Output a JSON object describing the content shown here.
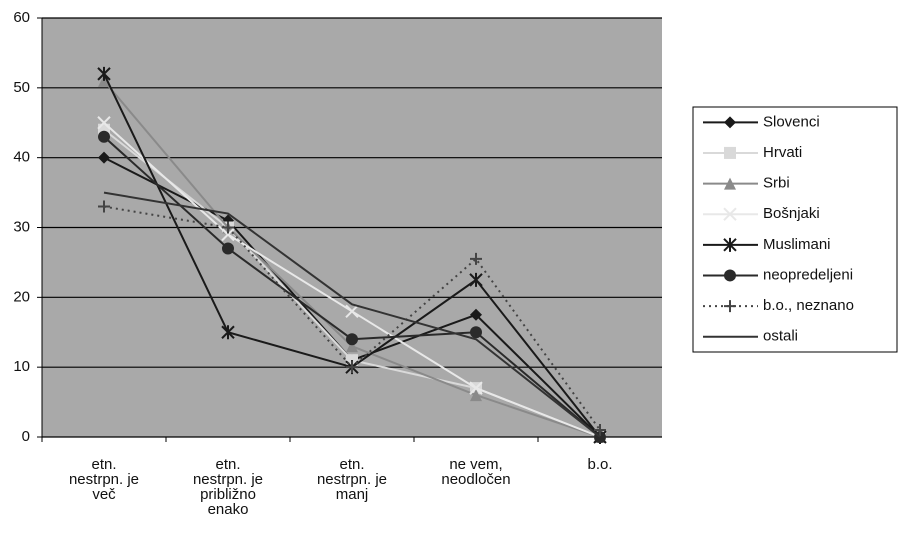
{
  "chart_data": {
    "type": "line",
    "categories": [
      [
        "etn.",
        "nestrpn. je",
        "več"
      ],
      [
        "etn.",
        "nestrpn. je",
        "približno",
        "enako"
      ],
      [
        "etn.",
        "nestrpn. je",
        "manj"
      ],
      [
        "ne vem,",
        "neodločen"
      ],
      [
        "b.o."
      ]
    ],
    "ylim": [
      0,
      60
    ],
    "yticks": [
      0,
      10,
      20,
      30,
      40,
      50,
      60
    ],
    "grid": true,
    "background": "#a9a9a9",
    "legend": "right",
    "series": [
      {
        "name": "Slovenci",
        "color": "#1a1a1a",
        "marker": "diamond",
        "line_style": "solid",
        "values": [
          40,
          31,
          11,
          17.5,
          0
        ]
      },
      {
        "name": "Hrvati",
        "color": "#d9d9d9",
        "marker": "square",
        "line_style": "solid",
        "values": [
          44,
          30,
          11,
          7,
          0
        ]
      },
      {
        "name": "Srbi",
        "color": "#8a8a8a",
        "marker": "triangle",
        "line_style": "solid",
        "values": [
          51,
          30,
          13,
          6,
          0
        ]
      },
      {
        "name": "Bošnjaki",
        "color": "#e8e8e8",
        "marker": "x",
        "line_style": "solid",
        "values": [
          45,
          29,
          18,
          7,
          0
        ]
      },
      {
        "name": "Muslimani",
        "color": "#1a1a1a",
        "marker": "star",
        "line_style": "solid",
        "values": [
          52,
          15,
          10,
          22.5,
          0
        ]
      },
      {
        "name": "neopredeljeni",
        "color": "#2a2a2a",
        "marker": "circle",
        "line_style": "solid",
        "values": [
          43,
          27,
          14,
          15,
          0
        ]
      },
      {
        "name": "b.o., neznano",
        "color": "#444444",
        "marker": "plus",
        "line_style": "dotted",
        "values": [
          33,
          30,
          10,
          25.5,
          1
        ]
      },
      {
        "name": "ostali",
        "color": "#333333",
        "marker": "none",
        "line_style": "solid",
        "values": [
          35,
          32,
          19,
          14,
          0
        ]
      }
    ]
  }
}
